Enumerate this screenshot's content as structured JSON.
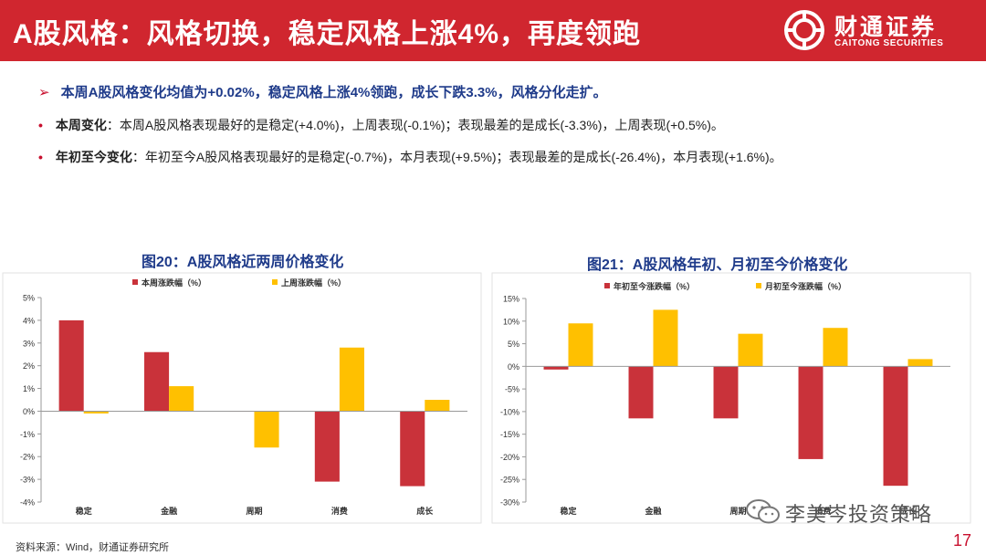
{
  "header": {
    "title": "A股风格：风格切换，稳定风格上涨4%，再度领跑",
    "logo_cn": "财通证券",
    "logo_en": "CAITONG SECURITIES"
  },
  "summary": {
    "arrow": "➢",
    "text": "本周A股风格变化均值为+0.02%，稳定风格上涨4%领跑，成长下跌3.3%，风格分化走扩。"
  },
  "bullets": [
    {
      "dot": "•",
      "label": "本周变化",
      "text": "：本周A股风格表现最好的是稳定(+4.0%)，上周表现(-0.1%)；表现最差的是成长(-3.3%)，上周表现(+0.5%)。"
    },
    {
      "dot": "•",
      "label": "年初至今变化",
      "text": "：年初至今A股风格表现最好的是稳定(-0.7%)，本月表现(+9.5%)；表现最差的是成长(-26.4%)，本月表现(+1.6%)。"
    }
  ],
  "source": "资料来源：Wind，财通证券研究所",
  "page_number": "17",
  "watermark": "李美岑投资策略",
  "colors": {
    "red": "#c9323a",
    "yellow": "#ffc000",
    "brand": "#d0262f",
    "title_blue": "#1f3b8a"
  },
  "chart_data": [
    {
      "type": "bar",
      "title": "图20：A股风格近两周价格变化",
      "categories": [
        "稳定",
        "金融",
        "周期",
        "消费",
        "成长"
      ],
      "series": [
        {
          "name": "本周涨跌幅（%）",
          "values": [
            4.0,
            2.6,
            0.0,
            -3.1,
            -3.3
          ]
        },
        {
          "name": "上周涨跌幅（%）",
          "values": [
            -0.1,
            1.1,
            -1.6,
            2.8,
            0.5
          ]
        }
      ],
      "ylim": [
        -4,
        5
      ],
      "yticks": [
        5,
        4,
        3,
        2,
        1,
        0,
        -1,
        -2,
        -3,
        -4
      ],
      "ytick_labels": [
        "5%",
        "4%",
        "3%",
        "2%",
        "1%",
        "0%",
        "-1%",
        "-2%",
        "-3%",
        "-4%"
      ],
      "legend": "top",
      "grid": false
    },
    {
      "type": "bar",
      "title": "图21：A股风格年初、月初至今价格变化",
      "categories": [
        "稳定",
        "金融",
        "周期",
        "消费",
        "成长"
      ],
      "series": [
        {
          "name": "年初至今涨跌幅（%）",
          "values": [
            -0.7,
            -11.5,
            -11.5,
            -20.5,
            -26.4
          ]
        },
        {
          "name": "月初至今涨跌幅（%）",
          "values": [
            9.5,
            12.5,
            7.2,
            8.5,
            1.6
          ]
        }
      ],
      "ylim": [
        -30,
        15
      ],
      "yticks": [
        15,
        10,
        5,
        0,
        -5,
        -10,
        -15,
        -20,
        -25,
        -30
      ],
      "ytick_labels": [
        "15%",
        "10%",
        "5%",
        "0%",
        "-5%",
        "-10%",
        "-15%",
        "-20%",
        "-25%",
        "-30%"
      ],
      "legend": "top",
      "grid": false
    }
  ]
}
